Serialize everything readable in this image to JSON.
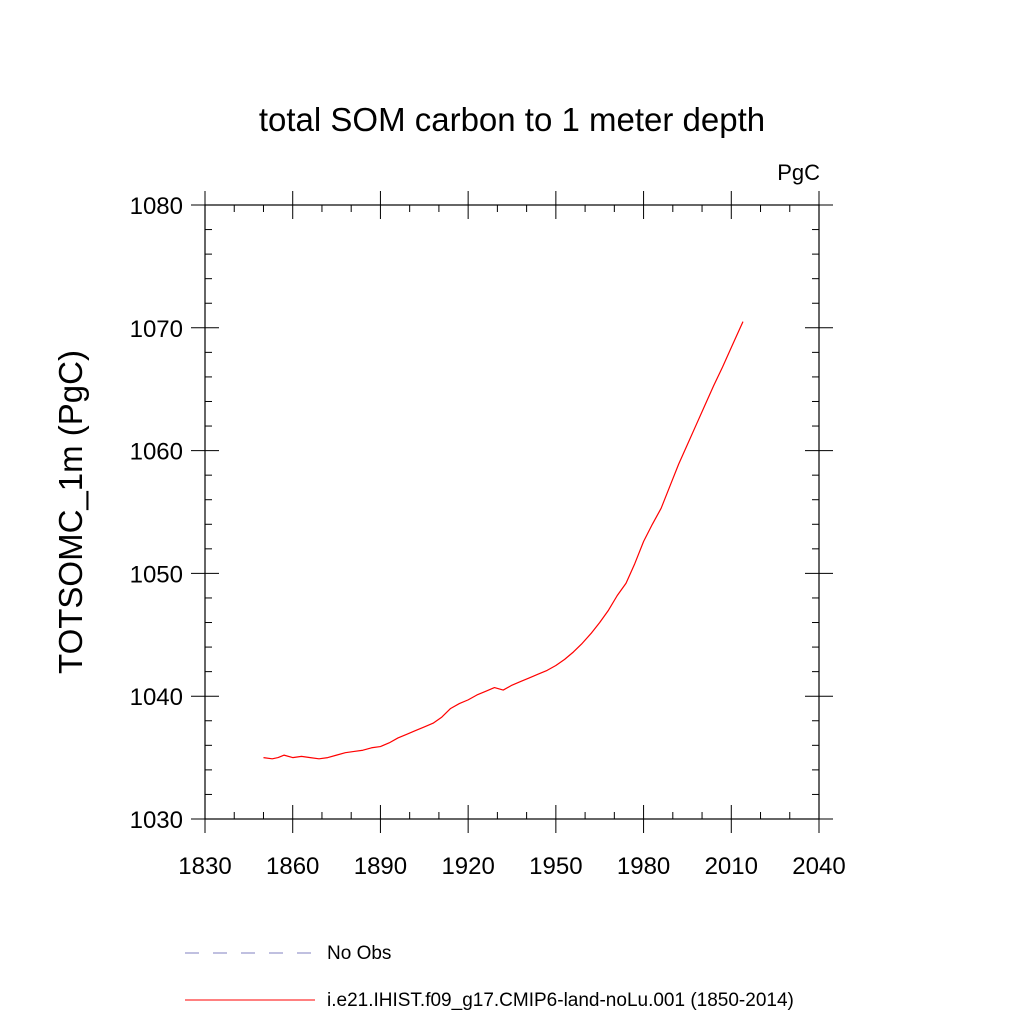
{
  "chart_data": {
    "type": "line",
    "title": "total SOM carbon to 1 meter depth",
    "units_label": "PgC",
    "ylabel": "TOTSOMC_1m  (PgC)",
    "xlabel": "",
    "xlim": [
      1830,
      2040
    ],
    "ylim": [
      1030,
      1080
    ],
    "xticks": [
      1830,
      1860,
      1890,
      1920,
      1950,
      1980,
      2010,
      2040
    ],
    "yticks": [
      1030,
      1040,
      1050,
      1060,
      1070,
      1080
    ],
    "grid": false,
    "legend_position": "bottom",
    "legend": [
      {
        "label": "No Obs",
        "color": "#8080c0",
        "style": "dashed"
      },
      {
        "label": "i.e21.IHIST.f09_g17.CMIP6-land-noLu.001 (1850-2014)",
        "color": "#ff0000",
        "style": "solid"
      }
    ],
    "series": [
      {
        "name": "i.e21.IHIST.f09_g17.CMIP6-land-noLu.001 (1850-2014)",
        "color": "#ff0000",
        "x": [
          1850,
          1853,
          1855,
          1857,
          1860,
          1863,
          1866,
          1869,
          1872,
          1875,
          1878,
          1881,
          1884,
          1887,
          1890,
          1893,
          1896,
          1899,
          1902,
          1905,
          1908,
          1911,
          1914,
          1917,
          1920,
          1923,
          1926,
          1929,
          1932,
          1935,
          1938,
          1941,
          1944,
          1947,
          1950,
          1953,
          1956,
          1959,
          1962,
          1965,
          1968,
          1971,
          1974,
          1977,
          1980,
          1983,
          1986,
          1989,
          1992,
          1995,
          1998,
          2001,
          2004,
          2007,
          2010,
          2014
        ],
        "y": [
          1035.0,
          1034.9,
          1035.0,
          1035.2,
          1035.0,
          1035.1,
          1035.0,
          1034.9,
          1035.0,
          1035.2,
          1035.4,
          1035.5,
          1035.6,
          1035.8,
          1035.9,
          1036.2,
          1036.6,
          1036.9,
          1037.2,
          1037.5,
          1037.8,
          1038.3,
          1039.0,
          1039.4,
          1039.7,
          1040.1,
          1040.4,
          1040.7,
          1040.5,
          1040.9,
          1041.2,
          1041.5,
          1041.8,
          1042.1,
          1042.5,
          1043.0,
          1043.6,
          1044.3,
          1045.1,
          1046.0,
          1047.0,
          1048.2,
          1049.2,
          1050.8,
          1052.6,
          1054.0,
          1055.3,
          1057.1,
          1058.9,
          1060.5,
          1062.1,
          1063.7,
          1065.3,
          1066.8,
          1068.4,
          1070.5
        ]
      }
    ]
  }
}
